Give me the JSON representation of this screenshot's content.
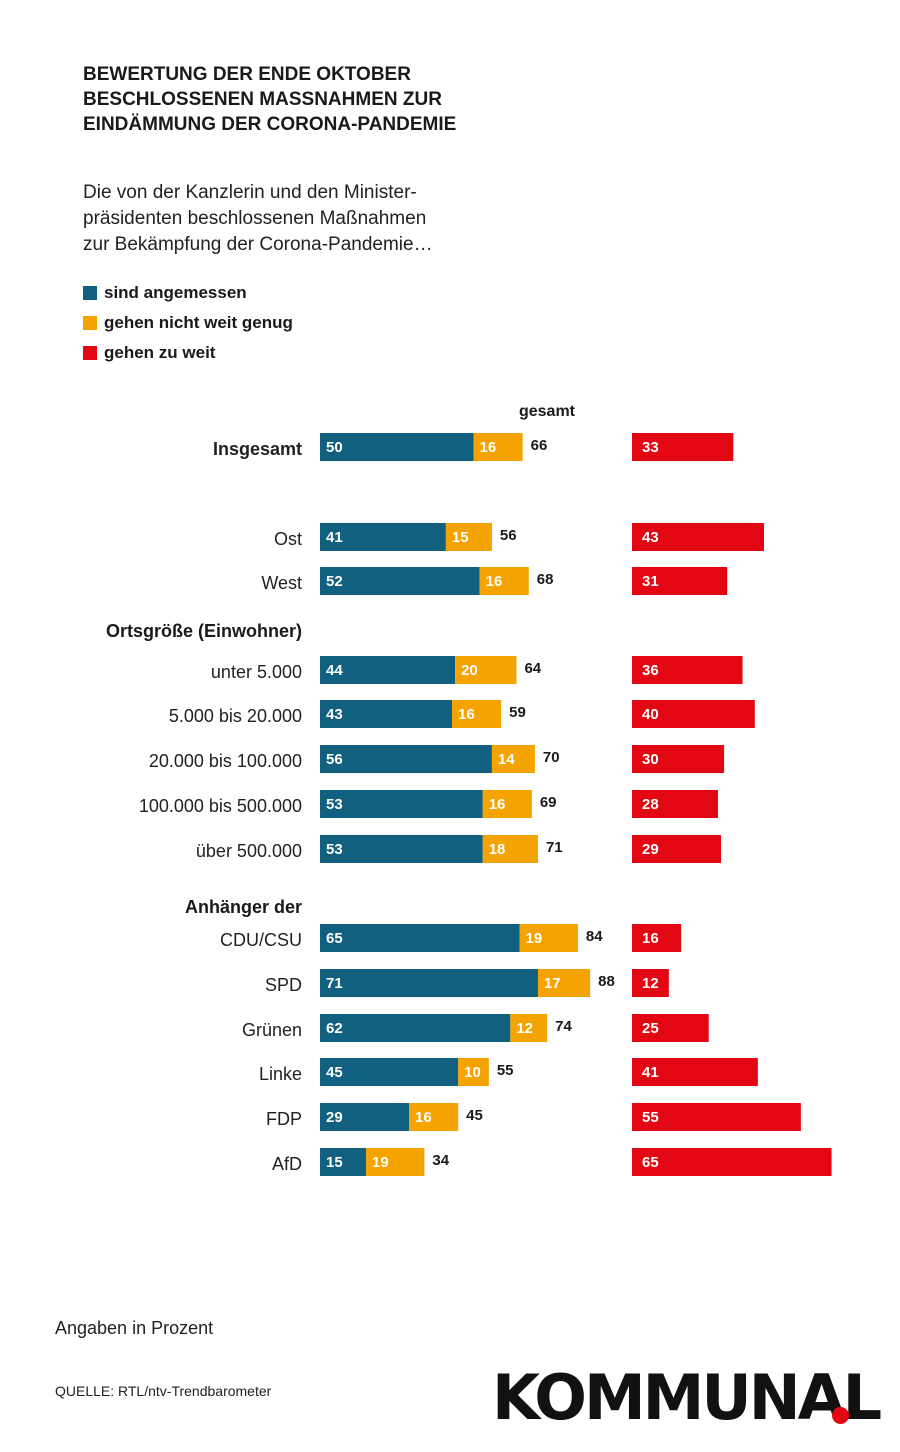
{
  "title_lines": [
    "BEWERTUNG DER ENDE OKTOBER",
    "BESCHLOSSENEN MASSNAHMEN ZUR",
    "EINDÄMMUNG DER CORONA-PANDEMIE"
  ],
  "subtitle_lines": [
    "Die von der Kanzlerin und den Minister-",
    "präsidenten beschlossenen Maßnahmen",
    "zur Bekämpfung der Corona-Pandemie…"
  ],
  "colors": {
    "angemessen": "#11607f",
    "nicht_weit_genug": "#f4a300",
    "zu_weit": "#e30613"
  },
  "legend": [
    {
      "label": "sind angemessen",
      "color": "#11607f"
    },
    {
      "label": "gehen nicht weit genug",
      "color": "#f4a300"
    },
    {
      "label": "gehen zu weit",
      "color": "#e30613"
    }
  ],
  "chart_data": {
    "type": "bar",
    "orientation": "horizontal",
    "stacked": true,
    "total_header": "gesamt",
    "series": [
      {
        "name": "sind angemessen",
        "color": "#11607f"
      },
      {
        "name": "gehen nicht weit genug",
        "color": "#f4a300"
      },
      {
        "name": "gehen zu weit",
        "color": "#e30613"
      }
    ],
    "group_headers": [
      {
        "label": "Ortsgröße (Einwohner)",
        "before_row": 3
      },
      {
        "label": "Anhänger der",
        "before_row": 8
      }
    ],
    "rows": [
      {
        "label": "Insgesamt",
        "bold": true,
        "angemessen": 50,
        "nicht_weit_genug": 16,
        "total": 66,
        "zu_weit": 33
      },
      {
        "label": "Ost",
        "angemessen": 41,
        "nicht_weit_genug": 15,
        "total": 56,
        "zu_weit": 43
      },
      {
        "label": "West",
        "angemessen": 52,
        "nicht_weit_genug": 16,
        "total": 68,
        "zu_weit": 31
      },
      {
        "label": "unter 5.000",
        "angemessen": 44,
        "nicht_weit_genug": 20,
        "total": 64,
        "zu_weit": 36
      },
      {
        "label": "5.000 bis 20.000",
        "angemessen": 43,
        "nicht_weit_genug": 16,
        "total": 59,
        "zu_weit": 40
      },
      {
        "label": "20.000 bis 100.000",
        "angemessen": 56,
        "nicht_weit_genug": 14,
        "total": 70,
        "zu_weit": 30
      },
      {
        "label": "100.000 bis 500.000",
        "angemessen": 53,
        "nicht_weit_genug": 16,
        "total": 69,
        "zu_weit": 28
      },
      {
        "label": "über 500.000",
        "angemessen": 53,
        "nicht_weit_genug": 18,
        "total": 71,
        "zu_weit": 29
      },
      {
        "label": "CDU/CSU",
        "angemessen": 65,
        "nicht_weit_genug": 19,
        "total": 84,
        "zu_weit": 16
      },
      {
        "label": "SPD",
        "angemessen": 71,
        "nicht_weit_genug": 17,
        "total": 88,
        "zu_weit": 12
      },
      {
        "label": "Grünen",
        "angemessen": 62,
        "nicht_weit_genug": 12,
        "total": 74,
        "zu_weit": 25
      },
      {
        "label": "Linke",
        "angemessen": 45,
        "nicht_weit_genug": 10,
        "total": 55,
        "zu_weit": 41
      },
      {
        "label": "FDP",
        "angemessen": 29,
        "nicht_weit_genug": 16,
        "total": 45,
        "zu_weit": 55
      },
      {
        "label": "AfD",
        "angemessen": 15,
        "nicht_weit_genug": 19,
        "total": 34,
        "zu_weit": 65
      }
    ],
    "unit": "Prozent"
  },
  "footer": {
    "note": "Angaben in Prozent",
    "source": "QUELLE: RTL/ntv-Trendbarometer",
    "logo": "KOMMUNAL"
  }
}
